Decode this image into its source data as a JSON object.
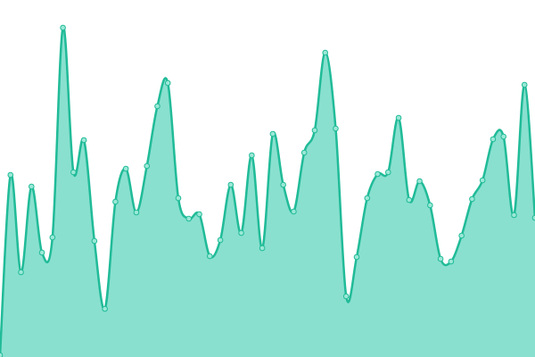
{
  "chart_data": {
    "type": "area",
    "values": [
      2,
      204,
      95,
      191,
      117,
      134,
      369,
      207,
      243,
      130,
      54,
      174,
      211,
      162,
      214,
      281,
      307,
      178,
      155,
      160,
      113,
      131,
      193,
      139,
      226,
      122,
      250,
      193,
      163,
      229,
      254,
      341,
      256,
      68,
      112,
      178,
      205,
      207,
      268,
      176,
      197,
      170,
      110,
      107,
      136,
      177,
      198,
      244,
      247,
      159,
      305,
      156
    ],
    "ylim": [
      0,
      400
    ],
    "color": "#20bb98",
    "fill": "#89e0cf",
    "marker_fill": "#9be8d6"
  }
}
